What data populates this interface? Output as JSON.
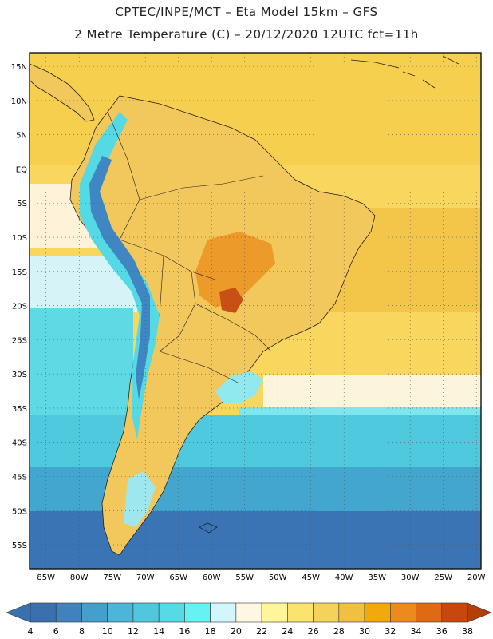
{
  "header": {
    "line1": "CPTEC/INPE/MCT –   Eta Model 15km – GFS",
    "line2": "2 Metre Temperature (C) – 20/12/2020 12UTC fct=11h"
  },
  "map": {
    "lat_labels": [
      "15N",
      "10N",
      "5N",
      "EQ",
      "5S",
      "10S",
      "15S",
      "20S",
      "25S",
      "30S",
      "35S",
      "40S",
      "45S",
      "50S",
      "55S"
    ],
    "lon_labels": [
      "85W",
      "80W",
      "75W",
      "70W",
      "65W",
      "60W",
      "55W",
      "50W",
      "45W",
      "40W",
      "35W",
      "30W",
      "25W",
      "20W"
    ],
    "lat_values": [
      15,
      10,
      5,
      0,
      -5,
      -10,
      -15,
      -20,
      -25,
      -30,
      -35,
      -40,
      -45,
      -50,
      -55
    ],
    "lon_values": [
      -85,
      -80,
      -75,
      -70,
      -65,
      -60,
      -55,
      -50,
      -45,
      -40,
      -35,
      -30,
      -25,
      -20
    ]
  },
  "colorbar": {
    "labels": [
      "4",
      "6",
      "8",
      "10",
      "12",
      "14",
      "16",
      "18",
      "20",
      "22",
      "24",
      "26",
      "28",
      "30",
      "32",
      "34",
      "36",
      "38"
    ],
    "colors": [
      "#3a6fb0",
      "#3f82bd",
      "#43a0cc",
      "#4cb6d8",
      "#4fc8de",
      "#55dbe6",
      "#66f2f0",
      "#d2f6fb",
      "#fdf7e4",
      "#fff59a",
      "#fbe46e",
      "#f5d25a",
      "#f1c040",
      "#f3a90e",
      "#ec8a1e",
      "#e06a14",
      "#c8470a"
    ]
  }
}
